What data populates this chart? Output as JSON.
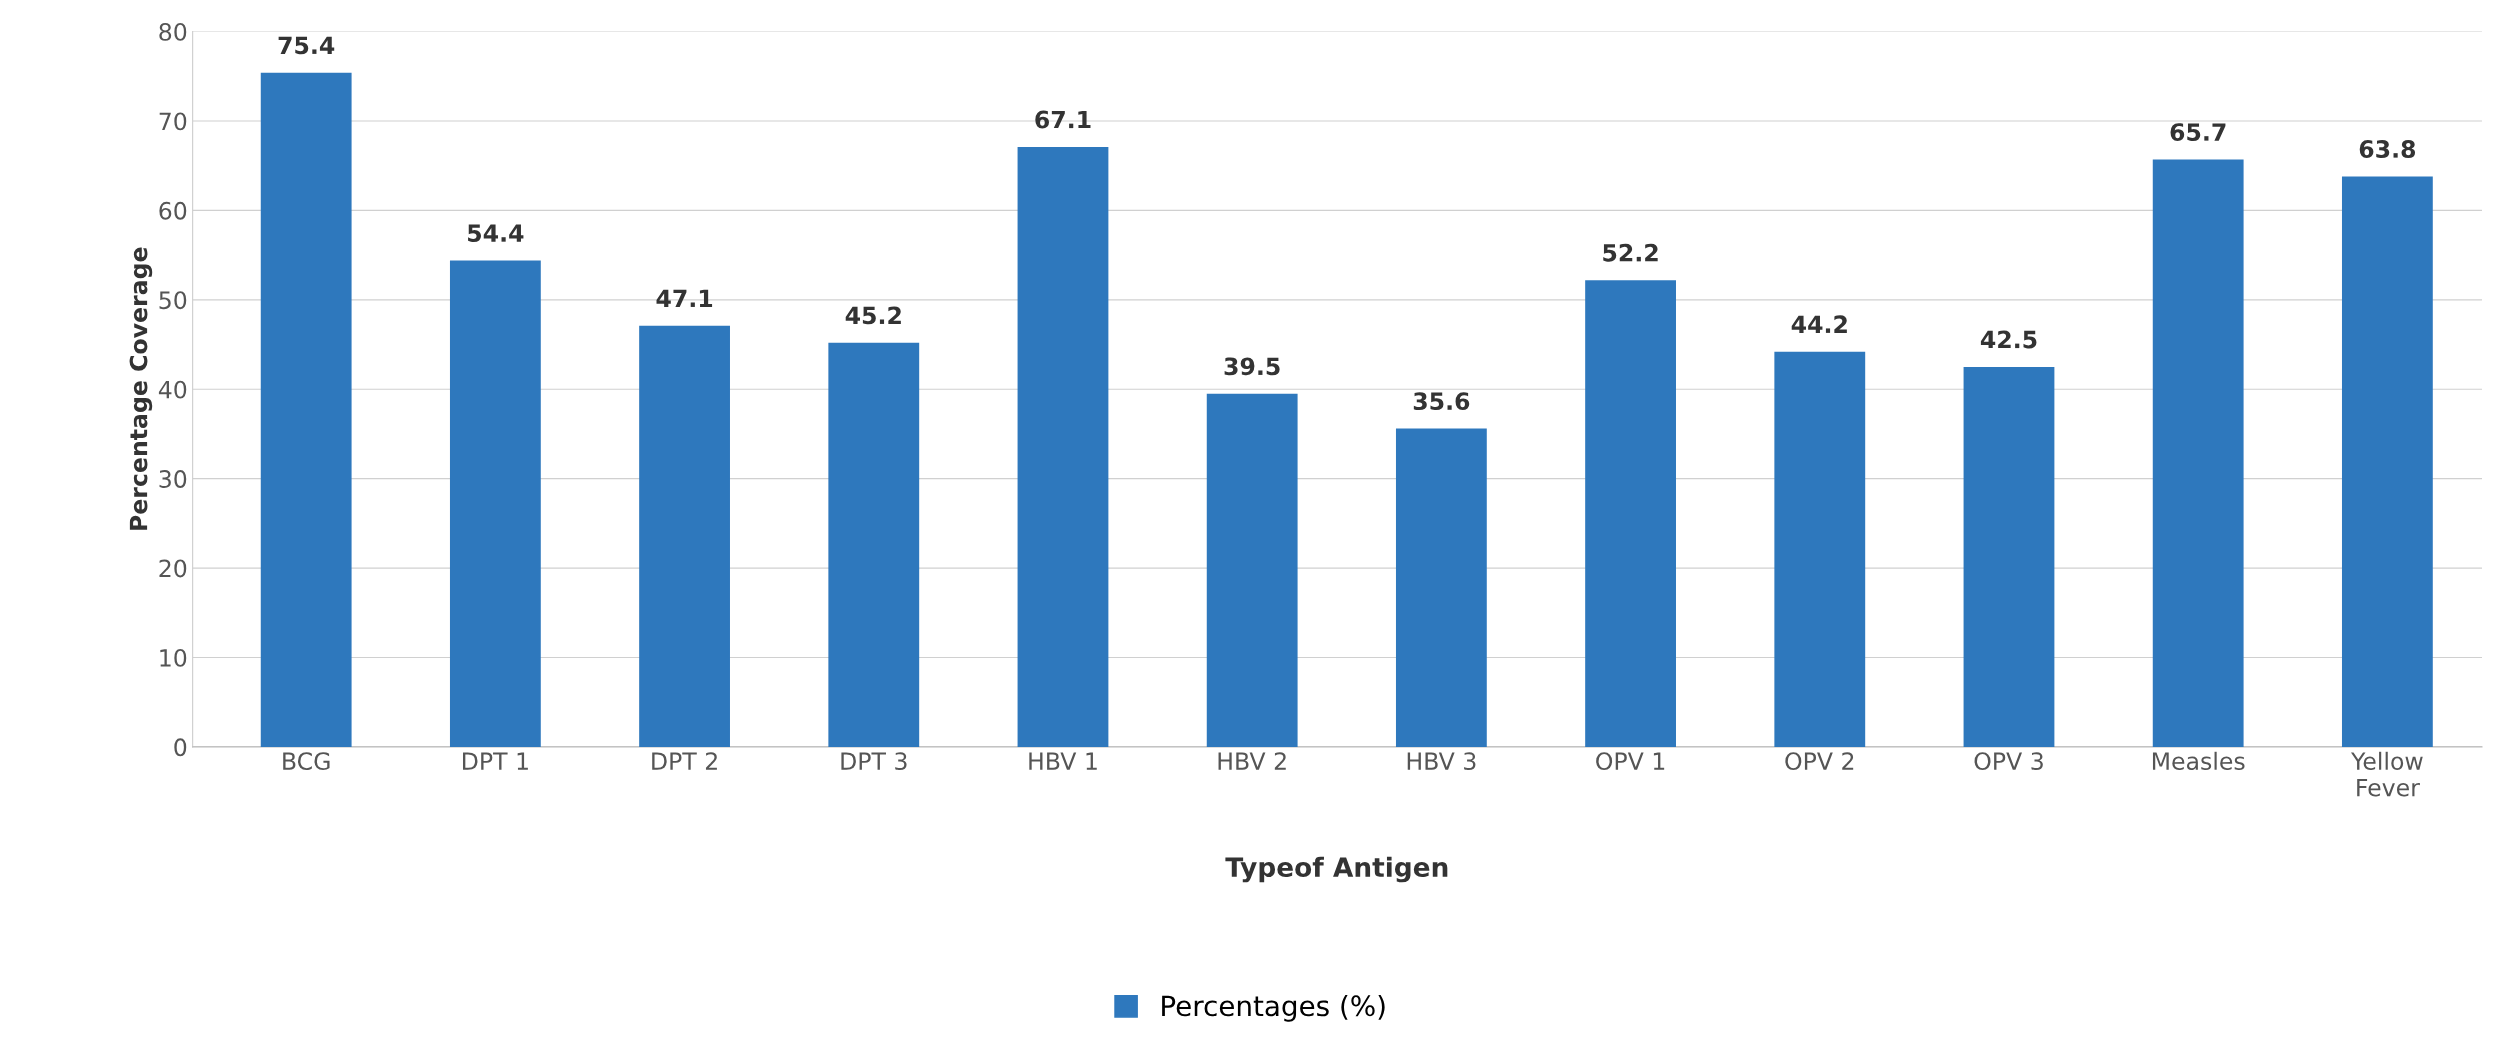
{
  "chart_data": {
    "type": "bar",
    "xlabel": "Typeof Antigen",
    "ylabel": "Percentage Coverage",
    "categories": [
      "BCG",
      "DPT 1",
      "DPT 2",
      "DPT 3",
      "HBV 1",
      "HBV 2",
      "HBV 3",
      "OPV 1",
      "OPV 2",
      "OPV 3",
      "Measles",
      "Yellow Fever"
    ],
    "series": [
      {
        "name": "Percentages (%)",
        "color": "#2e78bd",
        "values": [
          75.4,
          54.4,
          47.1,
          45.2,
          67.1,
          39.5,
          35.6,
          52.2,
          44.2,
          42.5,
          65.7,
          63.8
        ]
      }
    ],
    "ylim": [
      0,
      80
    ],
    "yticks": [
      0,
      10,
      20,
      30,
      40,
      50,
      60,
      70,
      80
    ],
    "grid": "y",
    "data_labels": true,
    "legend": "bottom"
  }
}
